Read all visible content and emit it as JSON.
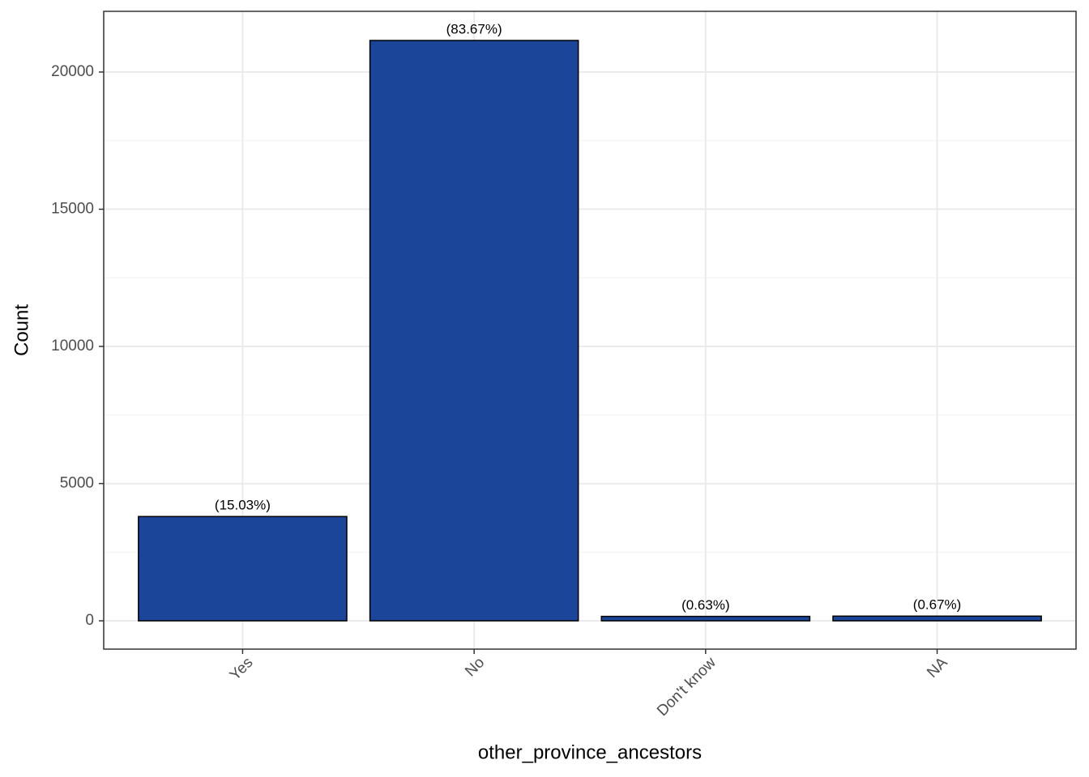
{
  "chart_data": {
    "type": "bar",
    "x_label": "other_province_ancestors",
    "y_label": "Count",
    "categories": [
      "Yes",
      "No",
      "Don't know",
      "NA"
    ],
    "values": [
      3800,
      21150,
      160,
      170
    ],
    "labels": [
      "(15.03%)",
      "(83.67%)",
      "(0.63%)",
      "(0.67%)"
    ],
    "color": "#1a4599",
    "edge_color": "#000000",
    "ylim": [
      -1032,
      22212
    ],
    "yticks": [
      0,
      5000,
      10000,
      15000,
      20000
    ],
    "minor_yticks": [
      2500,
      7500,
      12500,
      17500
    ],
    "grid": true
  }
}
